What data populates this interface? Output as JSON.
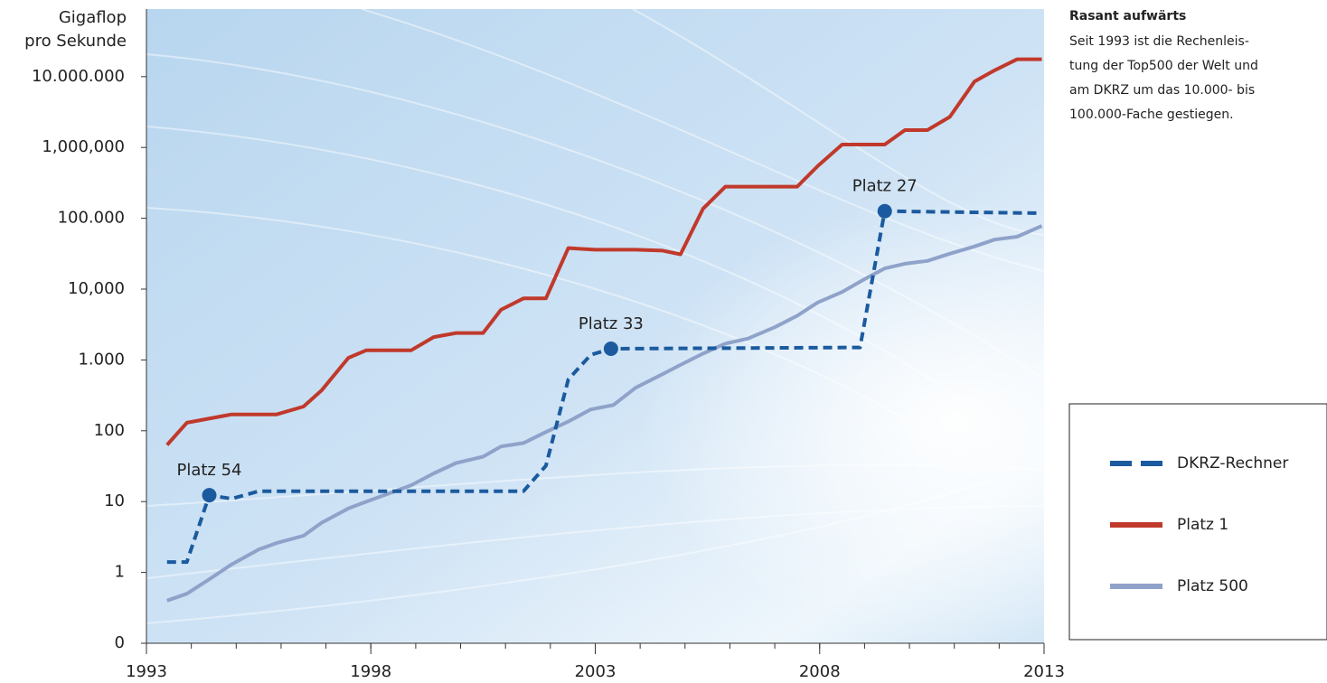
{
  "chart_data": {
    "type": "line",
    "y_label_lines": [
      "Gigaflop",
      "pro Sekunde"
    ],
    "sidebar_title": "Rasant aufwärts",
    "sidebar_lines": [
      "Seit 1993 ist die Rechenleis-",
      "tung der Top500 der Welt und",
      "am DKRZ um das 10.000- bis",
      "100.000-Fache gestiegen."
    ],
    "xlim": [
      1993,
      2013
    ],
    "xticks": [
      1993,
      1998,
      2003,
      2008,
      2013
    ],
    "x_minor_tick_step": 1,
    "ylim": [
      0.1,
      90000000
    ],
    "y_log_scale": true,
    "yticks": [
      {
        "value": 0.1,
        "label": "0"
      },
      1,
      10,
      100,
      {
        "value": 1000,
        "label": "1.000"
      },
      {
        "value": 10000,
        "label": "10,000"
      },
      {
        "value": 100000,
        "label": "100.000"
      },
      {
        "value": 1000000,
        "label": "1,000,000"
      },
      {
        "value": 10000000,
        "label": "10.000.000"
      }
    ],
    "legend": "right",
    "series": [
      {
        "name": "DKRZ-Rechner",
        "color": "#1b5a9e",
        "line_style": "dashed",
        "x": [
          1993.46,
          1993.9,
          1994.4,
          1994.9,
          1995.5,
          2001.4,
          2001.9,
          2002.4,
          2002.9,
          2003.35,
          2008.9,
          2009.45,
          2012.95
        ],
        "values": [
          1.4,
          1.4,
          12.3,
          11,
          14,
          14,
          32,
          530,
          1180,
          1440,
          1500,
          126000,
          118000
        ]
      },
      {
        "name": "Platz 1",
        "color": "#c0392b",
        "line_style": "solid",
        "x": [
          1993.46,
          1993.9,
          1994.9,
          1995.9,
          1996.5,
          1996.9,
          1997.5,
          1997.9,
          1998.9,
          1999.4,
          1999.9,
          2000.5,
          2000.9,
          2001.4,
          2001.9,
          2002.4,
          2003.0,
          2003.9,
          2004.5,
          2004.9,
          2005.4,
          2005.9,
          2007.0,
          2007.5,
          2007.96,
          2008.5,
          2009.0,
          2009.45,
          2009.9,
          2010.4,
          2010.9,
          2011.45,
          2011.9,
          2012.4,
          2012.95
        ],
        "values": [
          63,
          130,
          170,
          170,
          220,
          370,
          1070,
          1370,
          1370,
          2100,
          2400,
          2400,
          5100,
          7400,
          7400,
          38000,
          36000,
          36000,
          35000,
          31000,
          136000,
          280000,
          280000,
          280000,
          550000,
          1100000,
          1100000,
          1100000,
          1760000,
          1760000,
          2700000,
          8500000,
          12300000,
          17600000,
          17600000
        ]
      },
      {
        "name": "Platz 500",
        "color": "#8fa2c9",
        "line_style": "solid",
        "x": [
          1993.46,
          1993.9,
          1994.4,
          1994.9,
          1995.5,
          1995.9,
          1996.5,
          1996.9,
          1997.5,
          1997.9,
          1998.4,
          1998.9,
          1999.4,
          1999.9,
          2000.5,
          2000.9,
          2001.4,
          2001.9,
          2002.4,
          2002.9,
          2003.4,
          2003.9,
          2004.5,
          2004.9,
          2005.4,
          2005.9,
          2006.4,
          2007.0,
          2007.5,
          2007.96,
          2008.5,
          2009.0,
          2009.45,
          2009.9,
          2010.4,
          2010.9,
          2011.45,
          2011.9,
          2012.4,
          2012.95
        ],
        "values": [
          0.4,
          0.5,
          0.8,
          1.3,
          2.1,
          2.6,
          3.3,
          5,
          8,
          10,
          13,
          17,
          25,
          35,
          43,
          60,
          67,
          96,
          135,
          200,
          230,
          405,
          630,
          850,
          1230,
          1700,
          2000,
          2900,
          4200,
          6500,
          9100,
          13800,
          19600,
          22800,
          25000,
          31600,
          40000,
          50000,
          55000,
          78000
        ]
      }
    ],
    "annotations": [
      {
        "text": "Platz 54",
        "x": 1994.4,
        "y": 12.3
      },
      {
        "text": "Platz 33",
        "x": 2003.35,
        "y": 1440
      },
      {
        "text": "Platz 27",
        "x": 2009.45,
        "y": 126000
      }
    ],
    "annotation_color": "#1b5a9e"
  }
}
